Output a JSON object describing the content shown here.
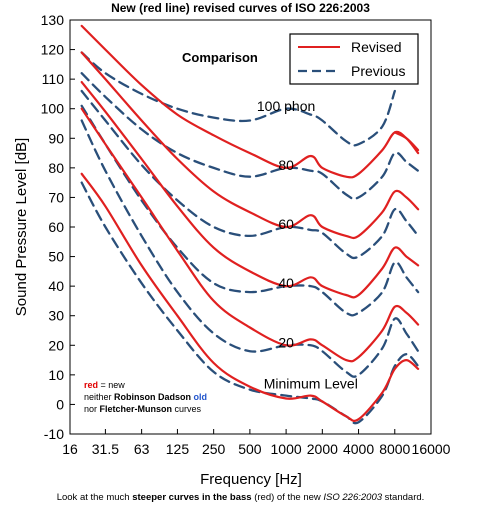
{
  "chart_data": {
    "type": "line",
    "title": "New (red line) revised curves of ISO 226:2003",
    "xlabel": "Frequency [Hz]",
    "ylabel": "Sound Pressure Level [dB]",
    "x_scale": "log",
    "xlim": [
      16,
      16000
    ],
    "ylim": [
      -10,
      130
    ],
    "x_ticks": [
      "16",
      "31.5",
      "63",
      "125",
      "250",
      "500",
      "1000",
      "2000",
      "4000",
      "8000",
      "16000"
    ],
    "y_ticks": [
      "130",
      "120",
      "110",
      "100",
      "90",
      "80",
      "70",
      "60",
      "50",
      "40",
      "30",
      "20",
      "10",
      "0",
      "-10"
    ],
    "grid": false,
    "annotation": "Comparison",
    "legend": {
      "position": "top-right",
      "entries": [
        {
          "label": "Revised",
          "color": "#e02020",
          "style": "solid"
        },
        {
          "label": "Previous",
          "color": "#2a4f7a",
          "style": "dashed"
        }
      ]
    },
    "curve_labels": [
      {
        "text": "100 phon",
        "x": 1000,
        "y": 101
      },
      {
        "text": "80",
        "x": 1000,
        "y": 81
      },
      {
        "text": "60",
        "x": 1000,
        "y": 61
      },
      {
        "text": "40",
        "x": 1000,
        "y": 41
      },
      {
        "text": "20",
        "x": 1000,
        "y": 21
      },
      {
        "text": "Minimum Level",
        "x": 1400,
        "y": 7
      }
    ],
    "x": [
      20,
      31.5,
      63,
      125,
      250,
      500,
      1000,
      1600,
      2000,
      3150,
      4000,
      6300,
      8000,
      10000,
      12500
    ],
    "series": [
      {
        "name": "Revised",
        "curve": "100 phon",
        "color": "#e02020",
        "dash": false,
        "values": [
          null,
          null,
          null,
          null,
          null,
          null,
          null,
          null,
          null,
          null,
          null,
          null,
          92,
          90,
          86
        ]
      },
      {
        "name": "Revised",
        "curve": "80 phon",
        "color": "#e02020",
        "dash": false,
        "values": [
          128,
          120,
          108,
          98,
          91,
          85,
          80,
          84,
          80,
          77,
          78,
          86,
          92,
          90,
          85
        ]
      },
      {
        "name": "Revised",
        "curve": "60 phon",
        "color": "#e02020",
        "dash": false,
        "values": [
          119,
          110,
          96,
          83,
          72,
          65,
          60,
          64,
          60,
          57,
          57,
          65,
          72,
          70,
          66
        ]
      },
      {
        "name": "Revised",
        "curve": "40 phon",
        "color": "#e02020",
        "dash": false,
        "values": [
          109,
          99,
          83,
          67,
          53,
          45,
          40,
          43,
          40,
          37,
          37,
          46,
          53,
          50,
          47
        ]
      },
      {
        "name": "Revised",
        "curve": "20 phon",
        "color": "#e02020",
        "dash": false,
        "values": [
          100,
          88,
          70,
          52,
          35,
          26,
          20,
          22,
          20,
          15,
          16,
          25,
          33,
          31,
          27
        ]
      },
      {
        "name": "Revised",
        "curve": "Minimum Level",
        "color": "#e02020",
        "dash": false,
        "values": [
          78,
          67,
          47,
          30,
          14,
          6,
          2,
          3,
          1,
          -4,
          -5,
          4,
          12,
          15,
          12
        ]
      },
      {
        "name": "Previous",
        "curve": "100 phon",
        "color": "#2a4f7a",
        "dash": true,
        "values": [
          119,
          112,
          105,
          100,
          97,
          96,
          100,
          98,
          96,
          89,
          88,
          94,
          106,
          null,
          null
        ]
      },
      {
        "name": "Previous",
        "curve": "80 phon",
        "color": "#2a4f7a",
        "dash": true,
        "values": [
          112,
          104,
          93,
          85,
          80,
          77,
          80,
          79,
          78,
          71,
          70,
          77,
          85,
          82,
          79
        ]
      },
      {
        "name": "Previous",
        "curve": "60 phon",
        "color": "#2a4f7a",
        "dash": true,
        "values": [
          106,
          96,
          81,
          69,
          60,
          57,
          60,
          59,
          58,
          51,
          50,
          57,
          66,
          62,
          57
        ]
      },
      {
        "name": "Previous",
        "curve": "40 phon",
        "color": "#2a4f7a",
        "dash": true,
        "values": [
          101,
          88,
          69,
          53,
          41,
          38,
          40,
          40,
          38,
          31,
          31,
          38,
          48,
          43,
          38
        ]
      },
      {
        "name": "Previous",
        "curve": "20 phon",
        "color": "#2a4f7a",
        "dash": true,
        "values": [
          96,
          79,
          57,
          38,
          24,
          18,
          20,
          20,
          18,
          11,
          10,
          19,
          29,
          24,
          18
        ]
      },
      {
        "name": "Previous",
        "curve": "Minimum Level",
        "color": "#2a4f7a",
        "dash": true,
        "values": [
          75,
          60,
          41,
          25,
          11,
          5,
          3,
          2,
          1,
          -4,
          -6,
          3,
          13,
          17,
          13
        ]
      }
    ]
  },
  "note": {
    "red_word": "red",
    "line1_rest": " = new",
    "line2_pre": "neither ",
    "line2_bold": "Robinson Dadson",
    "line2_old": " old",
    "line3_pre": "nor ",
    "line3_bold": "Fletcher-Munson",
    "line3_post": " curves"
  },
  "caption": {
    "pre": "Look at the much ",
    "bold": "steeper curves in the bass",
    "mid": " (red) of the new ",
    "italic": "ISO 226:2003",
    "post": " standard."
  }
}
